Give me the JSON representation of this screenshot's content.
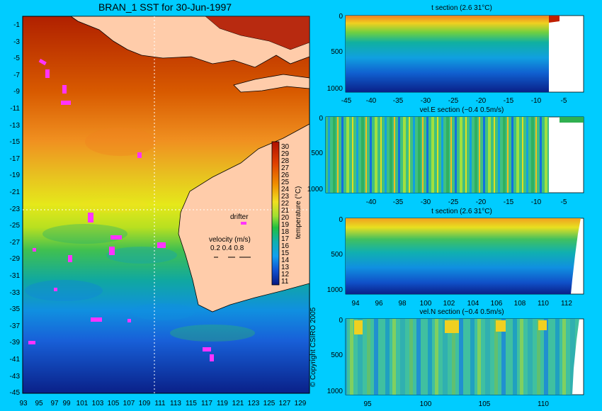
{
  "map": {
    "title": "BRAN_1 SST for 30-Jun-1997",
    "lat_labels": [
      "-1",
      "-3",
      "-5",
      "-7",
      "-9",
      "-11",
      "-13",
      "-15",
      "-17",
      "-19",
      "-21",
      "-23",
      "-25",
      "-27",
      "-29",
      "-31",
      "-33",
      "-35",
      "-37",
      "-39",
      "-41",
      "-43",
      "-45"
    ],
    "lon_labels": [
      "93",
      "95",
      "97",
      "99",
      "101",
      "103",
      "105",
      "107",
      "109",
      "111",
      "113",
      "115",
      "117",
      "119",
      "121",
      "123",
      "125",
      "127",
      "129"
    ],
    "colorbar": {
      "ticks": [
        "30",
        "29",
        "28",
        "27",
        "26",
        "25",
        "24",
        "23",
        "22",
        "21",
        "20",
        "19",
        "18",
        "17",
        "16",
        "15",
        "14",
        "13",
        "12",
        "11"
      ],
      "label": "temperature (°C)"
    },
    "legend": {
      "drifter_label": "drifter",
      "velocity_label": "velocity (m/s)",
      "velocity_values": "0.2 0.4 0.8"
    }
  },
  "panels": [
    {
      "title": "t section (2.6      31°C)",
      "depth_ticks": [
        "0",
        "500",
        "1000"
      ],
      "x_ticks": [
        "-45",
        "-40",
        "-35",
        "-30",
        "-25",
        "-20",
        "-15",
        "-10",
        "-5"
      ]
    },
    {
      "title": "vel.E section (−0.4      0.5m/s)",
      "depth_ticks": [
        "0",
        "500",
        "1000"
      ],
      "x_ticks": [
        "-40",
        "-35",
        "-30",
        "-25",
        "-20",
        "-15",
        "-10",
        "-5"
      ]
    },
    {
      "title": "t section (2.6      31°C)",
      "depth_ticks": [
        "0",
        "500",
        "1000"
      ],
      "x_ticks": [
        "94",
        "96",
        "98",
        "100",
        "102",
        "104",
        "106",
        "108",
        "110",
        "112"
      ]
    },
    {
      "title": "vel.N section (−0.4      0.5m/s)",
      "depth_ticks": [
        "0",
        "500",
        "1000"
      ],
      "x_ticks": [
        "95",
        "100",
        "105",
        "110"
      ]
    }
  ],
  "copyright": "© Copyright CSIRO 2005",
  "colors": {
    "background": "#00ccff",
    "land": "#ffccaa",
    "drifter": "#ff33ff"
  }
}
